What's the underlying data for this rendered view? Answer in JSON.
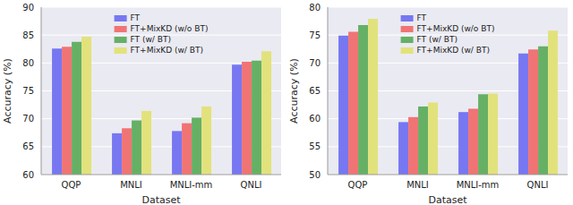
{
  "chart_data": [
    {
      "type": "bar",
      "x_label": "Dataset",
      "y_label": "Accuracy (%)",
      "categories": [
        "QQP",
        "MNLI",
        "MNLI-mm",
        "QNLI"
      ],
      "series": [
        {
          "name": "FT",
          "color": "#7777f2",
          "values": [
            82.6,
            67.4,
            67.8,
            79.7
          ]
        },
        {
          "name": "FT+MixKD (w/o BT)",
          "color": "#f07474",
          "values": [
            82.9,
            68.3,
            69.2,
            80.2
          ]
        },
        {
          "name": "FT (w/ BT)",
          "color": "#66b066",
          "values": [
            83.8,
            69.7,
            70.2,
            80.4
          ]
        },
        {
          "name": "FT+MixKD (w/ BT)",
          "color": "#e2e27c",
          "values": [
            84.7,
            71.4,
            72.2,
            82.1
          ]
        }
      ],
      "ylim": [
        60,
        90
      ],
      "yticks": [
        60,
        65,
        70,
        75,
        80,
        85,
        90
      ],
      "grid": true,
      "legend": "upper center"
    },
    {
      "type": "bar",
      "x_label": "Dataset",
      "y_label": "Accuracy (%)",
      "categories": [
        "QQP",
        "MNLI",
        "MNLI-mm",
        "QNLI"
      ],
      "series": [
        {
          "name": "FT",
          "color": "#7777f2",
          "values": [
            74.9,
            59.4,
            61.2,
            71.7
          ]
        },
        {
          "name": "FT+MixKD (w/o BT)",
          "color": "#f07474",
          "values": [
            75.6,
            60.3,
            61.8,
            72.4
          ]
        },
        {
          "name": "FT (w/ BT)",
          "color": "#66b066",
          "values": [
            76.8,
            62.2,
            64.4,
            73.0
          ]
        },
        {
          "name": "FT+MixKD (w/ BT)",
          "color": "#e2e27c",
          "values": [
            77.9,
            62.9,
            64.5,
            75.8
          ]
        }
      ],
      "ylim": [
        50,
        80
      ],
      "yticks": [
        50,
        55,
        60,
        65,
        70,
        75,
        80
      ],
      "grid": true,
      "legend": "upper center"
    }
  ]
}
